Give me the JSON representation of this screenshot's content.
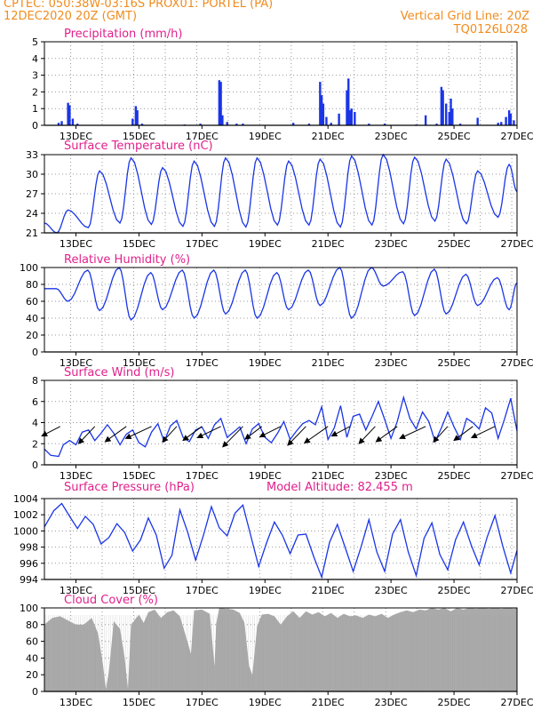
{
  "header": {
    "line1_left": "CPTEC:   050:38W-03:16S   PROX01: PORTEL (PA)",
    "line2_left": "12DEC2020 20Z (GMT)",
    "line2_right": "Vertical Grid Line: 20Z",
    "line3_right": "TQ0126L028"
  },
  "colors": {
    "header": "#f08c1e",
    "title": "#e0208c",
    "series": "#1a35e6",
    "cloud": "#aaaaaa",
    "axis": "#000000",
    "grid": "#999999"
  },
  "x_axis": {
    "ticks": [
      "13DEC",
      "15DEC",
      "17DEC",
      "19DEC",
      "21DEC",
      "23DEC",
      "25DEC",
      "27DEC"
    ],
    "tick_days": [
      13,
      15,
      17,
      19,
      21,
      23,
      25,
      27
    ],
    "start_day": 12.8333,
    "end_day": 27.0,
    "grid_hour_gmt": 20
  },
  "chart_data": [
    {
      "id": "precip",
      "type": "bar",
      "title": "Precipitation (mm/h)",
      "ylim": [
        0,
        5
      ],
      "yticks": [
        "0",
        "1",
        "2",
        "3",
        "4",
        "5"
      ],
      "events": [
        {
          "day": 12.45,
          "val": 0.15
        },
        {
          "day": 12.55,
          "val": 0.25
        },
        {
          "day": 12.75,
          "val": 1.35
        },
        {
          "day": 12.8,
          "val": 1.2
        },
        {
          "day": 12.9,
          "val": 0.4
        },
        {
          "day": 13.05,
          "val": 0.1
        },
        {
          "day": 14.8,
          "val": 0.4
        },
        {
          "day": 14.9,
          "val": 1.15
        },
        {
          "day": 14.95,
          "val": 0.9
        },
        {
          "day": 15.1,
          "val": 0.1
        },
        {
          "day": 16.45,
          "val": 0.05
        },
        {
          "day": 16.95,
          "val": 0.1
        },
        {
          "day": 17.55,
          "val": 2.7
        },
        {
          "day": 17.6,
          "val": 2.6
        },
        {
          "day": 17.65,
          "val": 0.6
        },
        {
          "day": 17.8,
          "val": 0.2
        },
        {
          "day": 18.1,
          "val": 0.1
        },
        {
          "day": 18.3,
          "val": 0.1
        },
        {
          "day": 19.9,
          "val": 0.15
        },
        {
          "day": 20.4,
          "val": 0.1
        },
        {
          "day": 20.75,
          "val": 2.6
        },
        {
          "day": 20.8,
          "val": 1.8
        },
        {
          "day": 20.85,
          "val": 1.3
        },
        {
          "day": 20.95,
          "val": 0.5
        },
        {
          "day": 21.1,
          "val": 0.15
        },
        {
          "day": 21.35,
          "val": 0.7
        },
        {
          "day": 21.6,
          "val": 2.1
        },
        {
          "day": 21.65,
          "val": 2.8
        },
        {
          "day": 21.7,
          "val": 0.9
        },
        {
          "day": 21.75,
          "val": 1.0
        },
        {
          "day": 21.85,
          "val": 0.8
        },
        {
          "day": 22.3,
          "val": 0.1
        },
        {
          "day": 22.8,
          "val": 0.1
        },
        {
          "day": 23.8,
          "val": 0.05
        },
        {
          "day": 24.1,
          "val": 0.6
        },
        {
          "day": 24.45,
          "val": 0.1
        },
        {
          "day": 24.6,
          "val": 2.3
        },
        {
          "day": 24.65,
          "val": 2.1
        },
        {
          "day": 24.75,
          "val": 1.3
        },
        {
          "day": 24.85,
          "val": 0.8
        },
        {
          "day": 24.9,
          "val": 1.6
        },
        {
          "day": 24.95,
          "val": 1.0
        },
        {
          "day": 25.2,
          "val": 0.1
        },
        {
          "day": 25.75,
          "val": 0.45
        },
        {
          "day": 26.4,
          "val": 0.15
        },
        {
          "day": 26.5,
          "val": 0.2
        },
        {
          "day": 26.65,
          "val": 0.5
        },
        {
          "day": 26.75,
          "val": 0.9
        },
        {
          "day": 26.8,
          "val": 0.7
        },
        {
          "day": 26.9,
          "val": 0.3
        }
      ]
    },
    {
      "id": "temp",
      "type": "line",
      "title": "Surface Temperature (nC)",
      "ylim": [
        21,
        33
      ],
      "yticks": [
        "21",
        "24",
        "27",
        "30",
        "33"
      ],
      "min_hour": 9.5,
      "max_hour": 18,
      "daily_min": [
        21.0,
        21.8,
        22.5,
        22.3,
        22.0,
        22.0,
        21.9,
        22.2,
        22.2,
        21.9,
        22.2,
        22.4,
        22.8,
        22.4,
        23.4
      ],
      "daily_max": [
        24.5,
        30.5,
        32.5,
        31.0,
        32.0,
        32.5,
        32.5,
        32.0,
        32.3,
        32.8,
        33.0,
        32.6,
        32.3,
        30.5,
        31.5
      ],
      "end_value": 27.3
    },
    {
      "id": "rh",
      "type": "line",
      "title": "Relative Humidity (%)",
      "ylim": [
        0,
        100
      ],
      "yticks": [
        "0",
        "20",
        "40",
        "60",
        "80",
        "100"
      ],
      "min_hour": 18,
      "max_hour": 9,
      "daily_max": [
        75,
        97,
        100,
        94,
        97,
        97,
        97,
        94,
        97,
        100,
        100,
        95,
        98,
        92,
        88
      ],
      "daily_min": [
        60,
        49,
        38,
        50,
        40,
        45,
        40,
        50,
        55,
        40,
        78,
        43,
        45,
        55,
        50
      ],
      "end_value": 82
    },
    {
      "id": "wind",
      "type": "line",
      "title": "Surface Wind (m/s)",
      "ylim": [
        0,
        8
      ],
      "yticks": [
        "0",
        "2",
        "4",
        "6",
        "8"
      ],
      "points": [
        [
          12.0,
          1.5
        ],
        [
          12.2,
          0.9
        ],
        [
          12.45,
          0.8
        ],
        [
          12.6,
          1.9
        ],
        [
          12.8,
          2.3
        ],
        [
          13.0,
          1.9
        ],
        [
          13.2,
          3.1
        ],
        [
          13.4,
          3.3
        ],
        [
          13.6,
          2.3
        ],
        [
          13.8,
          3.0
        ],
        [
          14.0,
          3.8
        ],
        [
          14.2,
          3.0
        ],
        [
          14.4,
          1.9
        ],
        [
          14.6,
          2.9
        ],
        [
          14.8,
          3.3
        ],
        [
          15.0,
          2.1
        ],
        [
          15.2,
          1.7
        ],
        [
          15.4,
          3.1
        ],
        [
          15.6,
          3.9
        ],
        [
          15.8,
          2.2
        ],
        [
          16.0,
          3.7
        ],
        [
          16.2,
          4.2
        ],
        [
          16.4,
          2.6
        ],
        [
          16.6,
          2.2
        ],
        [
          16.8,
          3.3
        ],
        [
          17.0,
          3.6
        ],
        [
          17.2,
          2.5
        ],
        [
          17.4,
          3.8
        ],
        [
          17.6,
          4.4
        ],
        [
          17.8,
          2.6
        ],
        [
          18.0,
          3.1
        ],
        [
          18.2,
          3.6
        ],
        [
          18.4,
          2.0
        ],
        [
          18.6,
          3.4
        ],
        [
          18.8,
          3.9
        ],
        [
          19.0,
          2.6
        ],
        [
          19.2,
          2.1
        ],
        [
          19.4,
          3.0
        ],
        [
          19.6,
          4.1
        ],
        [
          19.8,
          2.4
        ],
        [
          20.0,
          3.2
        ],
        [
          20.2,
          3.9
        ],
        [
          20.4,
          4.2
        ],
        [
          20.6,
          3.8
        ],
        [
          20.8,
          5.5
        ],
        [
          21.0,
          2.4
        ],
        [
          21.2,
          3.5
        ],
        [
          21.4,
          5.6
        ],
        [
          21.6,
          2.6
        ],
        [
          21.8,
          4.6
        ],
        [
          22.0,
          4.8
        ],
        [
          22.2,
          3.3
        ],
        [
          22.4,
          4.6
        ],
        [
          22.6,
          6.0
        ],
        [
          22.8,
          4.3
        ],
        [
          23.0,
          2.5
        ],
        [
          23.2,
          4.1
        ],
        [
          23.4,
          6.4
        ],
        [
          23.6,
          4.4
        ],
        [
          23.8,
          3.4
        ],
        [
          24.0,
          5.0
        ],
        [
          24.2,
          4.1
        ],
        [
          24.4,
          2.2
        ],
        [
          24.6,
          3.5
        ],
        [
          24.8,
          5.0
        ],
        [
          25.0,
          3.6
        ],
        [
          25.2,
          2.4
        ],
        [
          25.4,
          4.4
        ],
        [
          25.6,
          4.0
        ],
        [
          25.8,
          3.4
        ],
        [
          26.0,
          5.4
        ],
        [
          26.2,
          4.9
        ],
        [
          26.4,
          2.5
        ],
        [
          26.6,
          4.3
        ],
        [
          26.8,
          6.3
        ],
        [
          27.0,
          3.2
        ]
      ],
      "arrow_days": [
        12.5,
        13.6,
        14.6,
        15.4,
        16.2,
        17.0,
        17.6,
        18.3,
        18.9,
        19.5,
        20.3,
        21.0,
        21.7,
        22.5,
        23.2,
        24.1,
        24.8,
        25.6,
        26.3
      ]
    },
    {
      "id": "pres",
      "type": "line",
      "title": "Surface Pressure (hPa)",
      "title_right": "Model Altitude: 82.455 m",
      "ylim": [
        994,
        1004
      ],
      "yticks": [
        "994",
        "996",
        "998",
        "1000",
        "1002",
        "1004"
      ],
      "points": [
        [
          12.0,
          1000.5
        ],
        [
          12.3,
          1002.5
        ],
        [
          12.55,
          1003.4
        ],
        [
          12.8,
          1001.8
        ],
        [
          13.05,
          1000.3
        ],
        [
          13.3,
          1001.8
        ],
        [
          13.55,
          1000.8
        ],
        [
          13.8,
          998.4
        ],
        [
          14.05,
          999.2
        ],
        [
          14.3,
          1000.9
        ],
        [
          14.55,
          999.8
        ],
        [
          14.8,
          997.5
        ],
        [
          15.05,
          998.9
        ],
        [
          15.3,
          1001.6
        ],
        [
          15.55,
          999.5
        ],
        [
          15.8,
          995.4
        ],
        [
          16.05,
          997.0
        ],
        [
          16.3,
          1002.6
        ],
        [
          16.55,
          999.8
        ],
        [
          16.8,
          996.4
        ],
        [
          17.05,
          999.5
        ],
        [
          17.3,
          1003.0
        ],
        [
          17.55,
          1000.4
        ],
        [
          17.8,
          999.4
        ],
        [
          18.05,
          1002.2
        ],
        [
          18.3,
          1003.2
        ],
        [
          18.55,
          999.4
        ],
        [
          18.8,
          995.6
        ],
        [
          19.05,
          998.5
        ],
        [
          19.3,
          1001.1
        ],
        [
          19.55,
          999.5
        ],
        [
          19.8,
          997.2
        ],
        [
          20.05,
          999.5
        ],
        [
          20.3,
          999.6
        ],
        [
          20.55,
          996.8
        ],
        [
          20.8,
          994.3
        ],
        [
          21.05,
          998.6
        ],
        [
          21.3,
          1000.8
        ],
        [
          21.55,
          997.9
        ],
        [
          21.8,
          995.0
        ],
        [
          22.05,
          998.0
        ],
        [
          22.3,
          1001.4
        ],
        [
          22.55,
          997.4
        ],
        [
          22.8,
          995.0
        ],
        [
          23.05,
          999.6
        ],
        [
          23.3,
          1001.4
        ],
        [
          23.55,
          997.4
        ],
        [
          23.8,
          994.5
        ],
        [
          24.05,
          999.1
        ],
        [
          24.3,
          1001.0
        ],
        [
          24.55,
          997.1
        ],
        [
          24.8,
          995.2
        ],
        [
          25.05,
          998.9
        ],
        [
          25.3,
          1001.1
        ],
        [
          25.55,
          998.2
        ],
        [
          25.8,
          995.8
        ],
        [
          26.05,
          999.2
        ],
        [
          26.3,
          1001.9
        ],
        [
          26.55,
          998.1
        ],
        [
          26.8,
          994.8
        ],
        [
          27.0,
          997.6
        ]
      ]
    },
    {
      "id": "cloud",
      "type": "area",
      "title": "Cloud Cover (%)",
      "ylim": [
        0,
        100
      ],
      "yticks": [
        "0",
        "20",
        "40",
        "60",
        "80",
        "100"
      ],
      "points": [
        [
          12.0,
          80
        ],
        [
          12.25,
          88
        ],
        [
          12.5,
          90
        ],
        [
          12.75,
          85
        ],
        [
          13.0,
          80
        ],
        [
          13.25,
          80
        ],
        [
          13.5,
          88
        ],
        [
          13.7,
          70
        ],
        [
          13.85,
          35
        ],
        [
          13.95,
          3
        ],
        [
          14.05,
          25
        ],
        [
          14.2,
          84
        ],
        [
          14.4,
          75
        ],
        [
          14.55,
          40
        ],
        [
          14.65,
          3
        ],
        [
          14.75,
          80
        ],
        [
          15.0,
          92
        ],
        [
          15.15,
          82
        ],
        [
          15.3,
          95
        ],
        [
          15.5,
          98
        ],
        [
          15.7,
          88
        ],
        [
          15.9,
          95
        ],
        [
          16.1,
          97
        ],
        [
          16.3,
          90
        ],
        [
          16.5,
          65
        ],
        [
          16.65,
          45
        ],
        [
          16.75,
          97
        ],
        [
          17.0,
          98
        ],
        [
          17.25,
          93
        ],
        [
          17.4,
          30
        ],
        [
          17.45,
          80
        ],
        [
          17.55,
          100
        ],
        [
          17.8,
          99
        ],
        [
          18.0,
          98
        ],
        [
          18.2,
          94
        ],
        [
          18.35,
          82
        ],
        [
          18.5,
          30
        ],
        [
          18.6,
          20
        ],
        [
          18.75,
          78
        ],
        [
          18.9,
          92
        ],
        [
          19.1,
          93
        ],
        [
          19.3,
          90
        ],
        [
          19.5,
          80
        ],
        [
          19.7,
          90
        ],
        [
          19.9,
          96
        ],
        [
          20.1,
          88
        ],
        [
          20.3,
          96
        ],
        [
          20.5,
          92
        ],
        [
          20.7,
          95
        ],
        [
          20.9,
          90
        ],
        [
          21.1,
          94
        ],
        [
          21.3,
          88
        ],
        [
          21.5,
          93
        ],
        [
          21.7,
          90
        ],
        [
          21.9,
          91
        ],
        [
          22.1,
          88
        ],
        [
          22.3,
          92
        ],
        [
          22.5,
          90
        ],
        [
          22.7,
          93
        ],
        [
          22.9,
          88
        ],
        [
          23.1,
          92
        ],
        [
          23.3,
          95
        ],
        [
          23.5,
          97
        ],
        [
          23.7,
          95
        ],
        [
          23.9,
          98
        ],
        [
          24.1,
          97
        ],
        [
          24.3,
          100
        ],
        [
          24.5,
          98
        ],
        [
          24.7,
          100
        ],
        [
          24.9,
          96
        ],
        [
          25.1,
          100
        ],
        [
          25.3,
          98
        ],
        [
          25.5,
          100
        ],
        [
          25.7,
          99
        ],
        [
          25.9,
          100
        ],
        [
          26.1,
          99
        ],
        [
          26.3,
          100
        ],
        [
          26.5,
          99
        ],
        [
          26.7,
          100
        ],
        [
          26.9,
          99
        ],
        [
          27.0,
          100
        ]
      ]
    }
  ]
}
